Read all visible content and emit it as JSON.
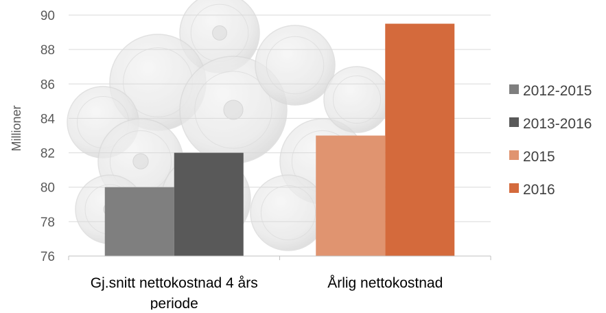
{
  "chart_data": {
    "type": "bar",
    "ylabel": "Millioner",
    "ylim": [
      76,
      90
    ],
    "yticks": [
      76,
      78,
      80,
      82,
      84,
      86,
      88,
      90
    ],
    "grid": true,
    "legend_position": "right",
    "groups": [
      {
        "label_lines": [
          "Gj.snitt nettokostnad 4 års",
          "periode"
        ],
        "bars": [
          {
            "series": "2012-2015",
            "value": 80.0
          },
          {
            "series": "2013-2016",
            "value": 82.0
          }
        ]
      },
      {
        "label_lines": [
          "Årlig nettokostnad"
        ],
        "bars": [
          {
            "series": "2015",
            "value": 83.0
          },
          {
            "series": "2016",
            "value": 89.5
          }
        ]
      }
    ],
    "series": [
      {
        "name": "2012-2015",
        "color": "#7f7f7f"
      },
      {
        "name": "2013-2016",
        "color": "#595959"
      },
      {
        "name": "2015",
        "color": "#e09470"
      },
      {
        "name": "2016",
        "color": "#d46a3c"
      }
    ],
    "background": "coins image"
  }
}
